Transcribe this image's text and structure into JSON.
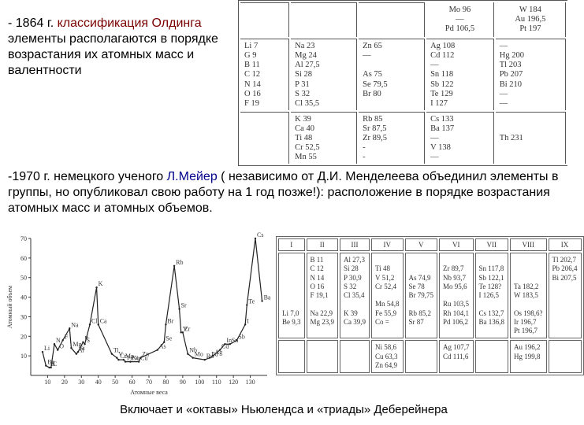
{
  "text": {
    "olding_intro1": "- 1864 г. ",
    "olding_name": "классификация Олдинга",
    "olding_intro2": "элементы располагаются в порядке возрастания их атомных масс и валентности",
    "meyer_year": "-1970 г. немецкого ученого ",
    "meyer_name": "Л.Мейер",
    "meyer_rest": " ( независимо от Д.И. Менделеева объединил элементы в группы, но опубликовал свою работу на 1 год позже!): расположение в порядке возрастания атомных масс и атомных объемов.",
    "footer": "Включает и «октавы» Ньюлендса и «триады» Деберейнера"
  },
  "colors": {
    "accent_red": "#7a0000",
    "accent_blue": "#00008b",
    "ink": "#333333"
  },
  "olding_table": {
    "header": [
      "",
      "",
      "",
      "Mo 96\n—\nPd 106,5",
      "W 184\nAu 196,5\nPt 197"
    ],
    "row1": [
      "Li 7\nG 9\nB 11\nC 12\nN 14\nO 16\nF 19",
      "Na 23\nMg 24\nAl 27,5\nSi 28\nP 31\nS 32\nCl 35,5",
      "Zn 65\n—\n\nAs 75\nSe 79,5\nBr 80",
      "Ag 108\nCd 112\n—\nSn 118\nSb 122\nTe 129\nI 127",
      "—\nHg 200\nTl 203\nPb 207\nBi 210\n—\n—"
    ],
    "row2": [
      "",
      "K 39\nCa 40\nTi 48\nCr 52,5\nMn 55",
      "Rb 85\nSr 87,5\nZr 89,5\n-\n-",
      "Cs 133\nBa 137\n—\nV 138\n—",
      "\n\nTh 231"
    ]
  },
  "meyer_table": {
    "headers": [
      "I",
      "II",
      "III",
      "IV",
      "V",
      "VI",
      "VII",
      "VIII",
      "IX"
    ],
    "cells": [
      "\n\n\n\n\n\nLi 7,0\nBe 9,3",
      "B 11\nC 12\nN 14\nO 16\nF 19,1\n\nNa 22,9\nMg 23,9",
      "Al 27,3\nSi 28\nP 30,9\nS 32\nCl 35,4\n\nK 39\nCa 39,9",
      "\nTi 48\nV 51,2\nCr 52,4\n\nMn 54,8\nFe 55,9\nCo =",
      "\n\nAs 74,9\nSe 78\nBr 79,75\n\nRb 85,2\nSr 87",
      "\nZr 89,7\nNb 93,7\nMo 95,6\n\nRu 103,5\nRh 104,1\nPd 106,2",
      "\nSn 117,8\nSb 122,1\nTe 128?\nI 126,5\n\nCs 132,7\nBa 136,8",
      "\n\n\nTa 182,2\nW 183,5\n\nOs 198,6?\nIr 196,7\nPt 196,7",
      "Tl 202,7\nPb 206,4\nBi 207,5"
    ],
    "row2": [
      "",
      "",
      "",
      "Ni 58,6\nCu 63,3\nZn 64,9",
      "",
      "Ag 107,7\nCd 111,6",
      "",
      "Au 196,2\nHg 199,8",
      ""
    ]
  },
  "chart": {
    "xlabel": "Атомные веса",
    "ylabel": "Атомный объем",
    "xlim": [
      0,
      140
    ],
    "ylim": [
      0,
      70
    ],
    "xticks": [
      10,
      20,
      30,
      40,
      50,
      60,
      70,
      80,
      90,
      100,
      110,
      120,
      130
    ],
    "yticks": [
      10,
      20,
      30,
      40,
      50,
      60,
      70
    ],
    "points": [
      {
        "x": 7,
        "y": 12,
        "l": "Li"
      },
      {
        "x": 9,
        "y": 5,
        "l": "Be"
      },
      {
        "x": 11,
        "y": 4,
        "l": "B"
      },
      {
        "x": 12,
        "y": 4,
        "l": "C"
      },
      {
        "x": 14,
        "y": 16,
        "l": "N"
      },
      {
        "x": 16,
        "y": 13,
        "l": "O"
      },
      {
        "x": 19,
        "y": 18,
        "l": "F"
      },
      {
        "x": 23,
        "y": 24,
        "l": "Na"
      },
      {
        "x": 24,
        "y": 14,
        "l": "Mg"
      },
      {
        "x": 27,
        "y": 11,
        "l": "Al"
      },
      {
        "x": 28,
        "y": 12,
        "l": "Si"
      },
      {
        "x": 31,
        "y": 17,
        "l": "P"
      },
      {
        "x": 32,
        "y": 16,
        "l": "S"
      },
      {
        "x": 35,
        "y": 26,
        "l": "Cl"
      },
      {
        "x": 39,
        "y": 45,
        "l": "K"
      },
      {
        "x": 40,
        "y": 26,
        "l": "Ca"
      },
      {
        "x": 48,
        "y": 11,
        "l": "Ti"
      },
      {
        "x": 51,
        "y": 9,
        "l": "V"
      },
      {
        "x": 52,
        "y": 8,
        "l": "Cr"
      },
      {
        "x": 55,
        "y": 8,
        "l": "Mn"
      },
      {
        "x": 56,
        "y": 7,
        "l": "Fe"
      },
      {
        "x": 59,
        "y": 7,
        "l": "Co"
      },
      {
        "x": 59,
        "y": 7,
        "l": "Ni"
      },
      {
        "x": 64,
        "y": 7,
        "l": "Cu"
      },
      {
        "x": 65,
        "y": 9,
        "l": "Zn"
      },
      {
        "x": 75,
        "y": 13,
        "l": "As"
      },
      {
        "x": 79,
        "y": 17,
        "l": "Se"
      },
      {
        "x": 80,
        "y": 26,
        "l": "Br"
      },
      {
        "x": 85,
        "y": 56,
        "l": "Rb"
      },
      {
        "x": 88,
        "y": 34,
        "l": "Sr"
      },
      {
        "x": 89,
        "y": 22,
        "l": "Y"
      },
      {
        "x": 90,
        "y": 22,
        "l": "Zr"
      },
      {
        "x": 93,
        "y": 11,
        "l": "Nb"
      },
      {
        "x": 96,
        "y": 9,
        "l": "Mo"
      },
      {
        "x": 103,
        "y": 8,
        "l": "Ru"
      },
      {
        "x": 106,
        "y": 9,
        "l": "Pd"
      },
      {
        "x": 108,
        "y": 10,
        "l": "Ag"
      },
      {
        "x": 112,
        "y": 13,
        "l": "Cd"
      },
      {
        "x": 115,
        "y": 16,
        "l": "In"
      },
      {
        "x": 118,
        "y": 16,
        "l": "Sn"
      },
      {
        "x": 122,
        "y": 18,
        "l": "Sb"
      },
      {
        "x": 127,
        "y": 26,
        "l": "I"
      },
      {
        "x": 128,
        "y": 36,
        "l": "Te"
      },
      {
        "x": 133,
        "y": 70,
        "l": "Cs"
      },
      {
        "x": 137,
        "y": 38,
        "l": "Ba"
      }
    ]
  }
}
